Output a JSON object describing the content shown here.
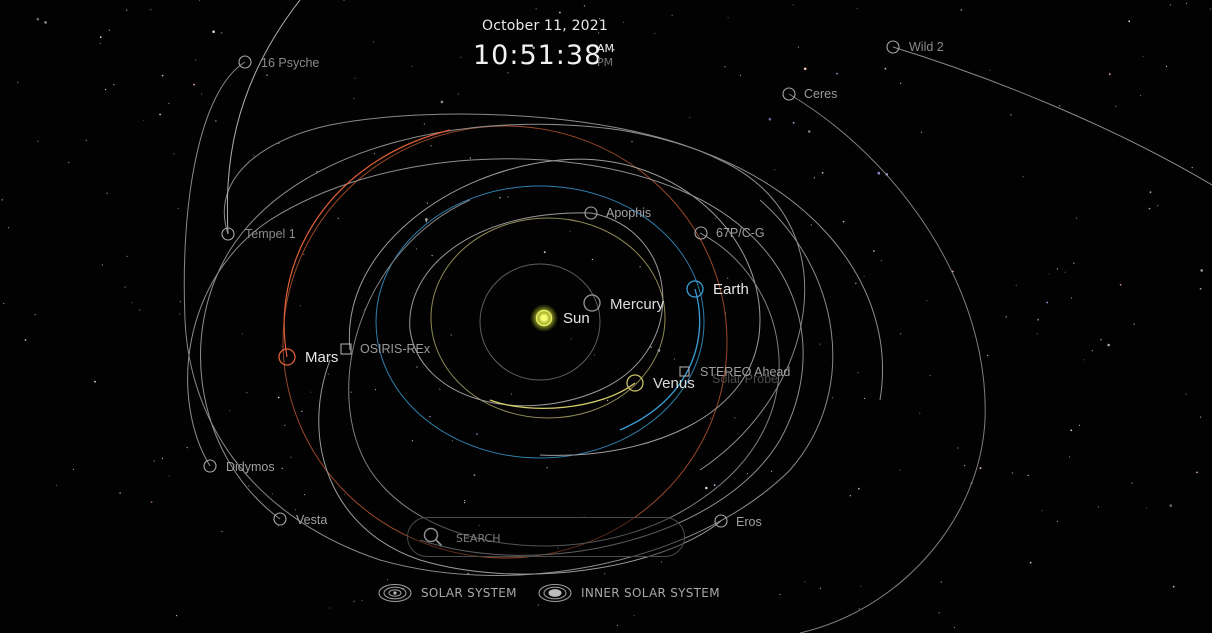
{
  "clock": {
    "date": "October 11, 2021",
    "time": "10:51:38",
    "am": "AM",
    "pm": "PM",
    "active_period": "AM"
  },
  "search": {
    "placeholder": "SEARCH"
  },
  "view_buttons": [
    {
      "label": "SOLAR SYSTEM",
      "icon": "solar-system-icon"
    },
    {
      "label": "INNER SOLAR SYSTEM",
      "icon": "inner-solar-system-icon"
    }
  ],
  "bodies": [
    {
      "name": "Sun",
      "marker": "sun-icon",
      "color": "#e6f04a"
    },
    {
      "name": "Mercury",
      "marker": "circle",
      "color": "#8a8a8a"
    },
    {
      "name": "Venus",
      "marker": "circle",
      "color": "#c8c16a"
    },
    {
      "name": "Earth",
      "marker": "circle",
      "color": "#3aa0d8"
    },
    {
      "name": "Mars",
      "marker": "circle",
      "color": "#e0603a"
    },
    {
      "name": "OSIRIS-REx",
      "marker": "square",
      "color": "#a0a0a0"
    },
    {
      "name": "STEREO Ahead",
      "marker": "square",
      "color": "#a0a0a0"
    },
    {
      "name": "Solar Probe",
      "marker": "none",
      "color": "#5a5a5a"
    },
    {
      "name": "Apophis",
      "marker": "circle",
      "color": "#a0a0a0"
    },
    {
      "name": "67P/C-G",
      "marker": "circle",
      "color": "#a0a0a0"
    },
    {
      "name": "Tempel 1",
      "marker": "circle",
      "color": "#a0a0a0"
    },
    {
      "name": "16 Psyche",
      "marker": "circle",
      "color": "#a0a0a0"
    },
    {
      "name": "Ceres",
      "marker": "circle",
      "color": "#a0a0a0"
    },
    {
      "name": "Wild 2",
      "marker": "circle",
      "color": "#a0a0a0"
    },
    {
      "name": "Didymos",
      "marker": "circle",
      "color": "#a0a0a0"
    },
    {
      "name": "Vesta",
      "marker": "circle",
      "color": "#a0a0a0"
    },
    {
      "name": "Eros",
      "marker": "circle",
      "color": "#a0a0a0"
    }
  ]
}
